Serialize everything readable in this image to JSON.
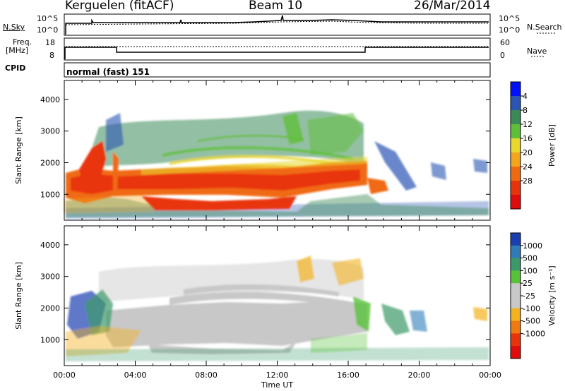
{
  "header": {
    "station": "Kerguelen (fitACF)",
    "beam": "Beam 10",
    "date": "26/Mar/2014"
  },
  "aux_labels": {
    "nsky": "N.Sky",
    "nsky_top": "10^5",
    "nsky_bottom": "10^0",
    "nsearch": "N.Search",
    "nsearch_top": "10^5",
    "nsearch_bottom": "10^0",
    "freq_line1": "Freq.",
    "freq_line2": "[MHz]",
    "freq_top": "18",
    "freq_bottom": "8",
    "nave": "Nave",
    "nave_top": "60",
    "nave_bottom": "0",
    "cpid": "CPID",
    "cpid_value": "normal (fast) 151"
  },
  "chart_data": [
    {
      "type": "heatmap",
      "name": "power",
      "ylabel": "Slant Range [km]",
      "yticks": [
        1000,
        2000,
        3000,
        4000
      ],
      "ylim": [
        180,
        4600
      ],
      "colorbar": {
        "label": "Power [dB]",
        "ticks": [
          "4",
          "8",
          "12",
          "16",
          "20",
          "24",
          "28"
        ],
        "colors": [
          "#0010ff",
          "#2a55b3",
          "#3b8a58",
          "#5fbf3a",
          "#e8d72c",
          "#f4a51e",
          "#f06a12",
          "#e8340c",
          "#e00c0c"
        ]
      }
    },
    {
      "type": "heatmap",
      "name": "velocity",
      "xlabel": "Time UT",
      "ylabel": "Slant Range [km]",
      "xticks": [
        "00:00",
        "04:00",
        "08:00",
        "12:00",
        "16:00",
        "20:00",
        "00:00"
      ],
      "yticks": [
        1000,
        2000,
        3000,
        4000
      ],
      "ylim": [
        180,
        4600
      ],
      "colorbar": {
        "label": "Velocity [m s⁻¹]",
        "ticks": [
          "1000",
          "500",
          "100",
          "25",
          "-25",
          "-100",
          "-500",
          "-1000"
        ],
        "colors": [
          "#1a3fb0",
          "#2e7db8",
          "#3a9a6a",
          "#58c33a",
          "#c8c8c8",
          "#c8c8c8",
          "#f4b21e",
          "#f07a12",
          "#e8340c",
          "#e00c0c"
        ]
      }
    }
  ]
}
